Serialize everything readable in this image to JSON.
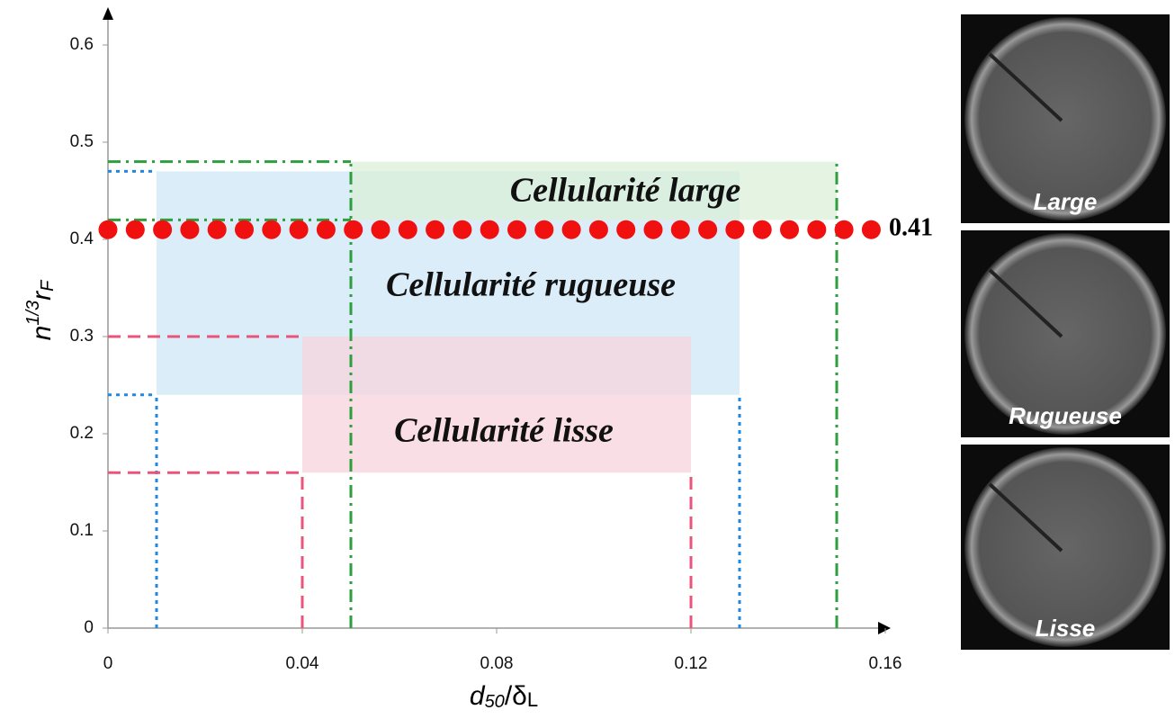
{
  "chart_data": {
    "type": "region",
    "xlabel": [
      "d",
      "50",
      "/",
      "δ",
      "L"
    ],
    "ylabel": [
      "n",
      "1/3",
      "r",
      "F"
    ],
    "xlim": [
      0,
      0.16
    ],
    "ylim": [
      0,
      0.6
    ],
    "xticks": [
      0,
      0.04,
      0.08,
      0.12,
      0.16
    ],
    "yticks": [
      0,
      0.1,
      0.2,
      0.3,
      0.4,
      0.5,
      0.6
    ],
    "regions": [
      {
        "name": "Cellularité rugueuse",
        "color": "#1e88e5",
        "fill": "#cfe7f5",
        "x": [
          0.01,
          0.13
        ],
        "y": [
          0.24,
          0.47
        ]
      },
      {
        "name": "Cellularité lisse",
        "color": "#e8547a",
        "fill": "#f7d3dc",
        "x": [
          0.04,
          0.12
        ],
        "y": [
          0.16,
          0.3
        ]
      },
      {
        "name": "Cellularité large",
        "color": "#2e9e3e",
        "fill": "#dbefd8",
        "x": [
          0.05,
          0.15
        ],
        "y": [
          0.42,
          0.48
        ]
      }
    ],
    "threshold": {
      "value": 0.41,
      "color": "#f01010"
    },
    "images": [
      "Large",
      "Rugueuse",
      "Lisse"
    ]
  }
}
